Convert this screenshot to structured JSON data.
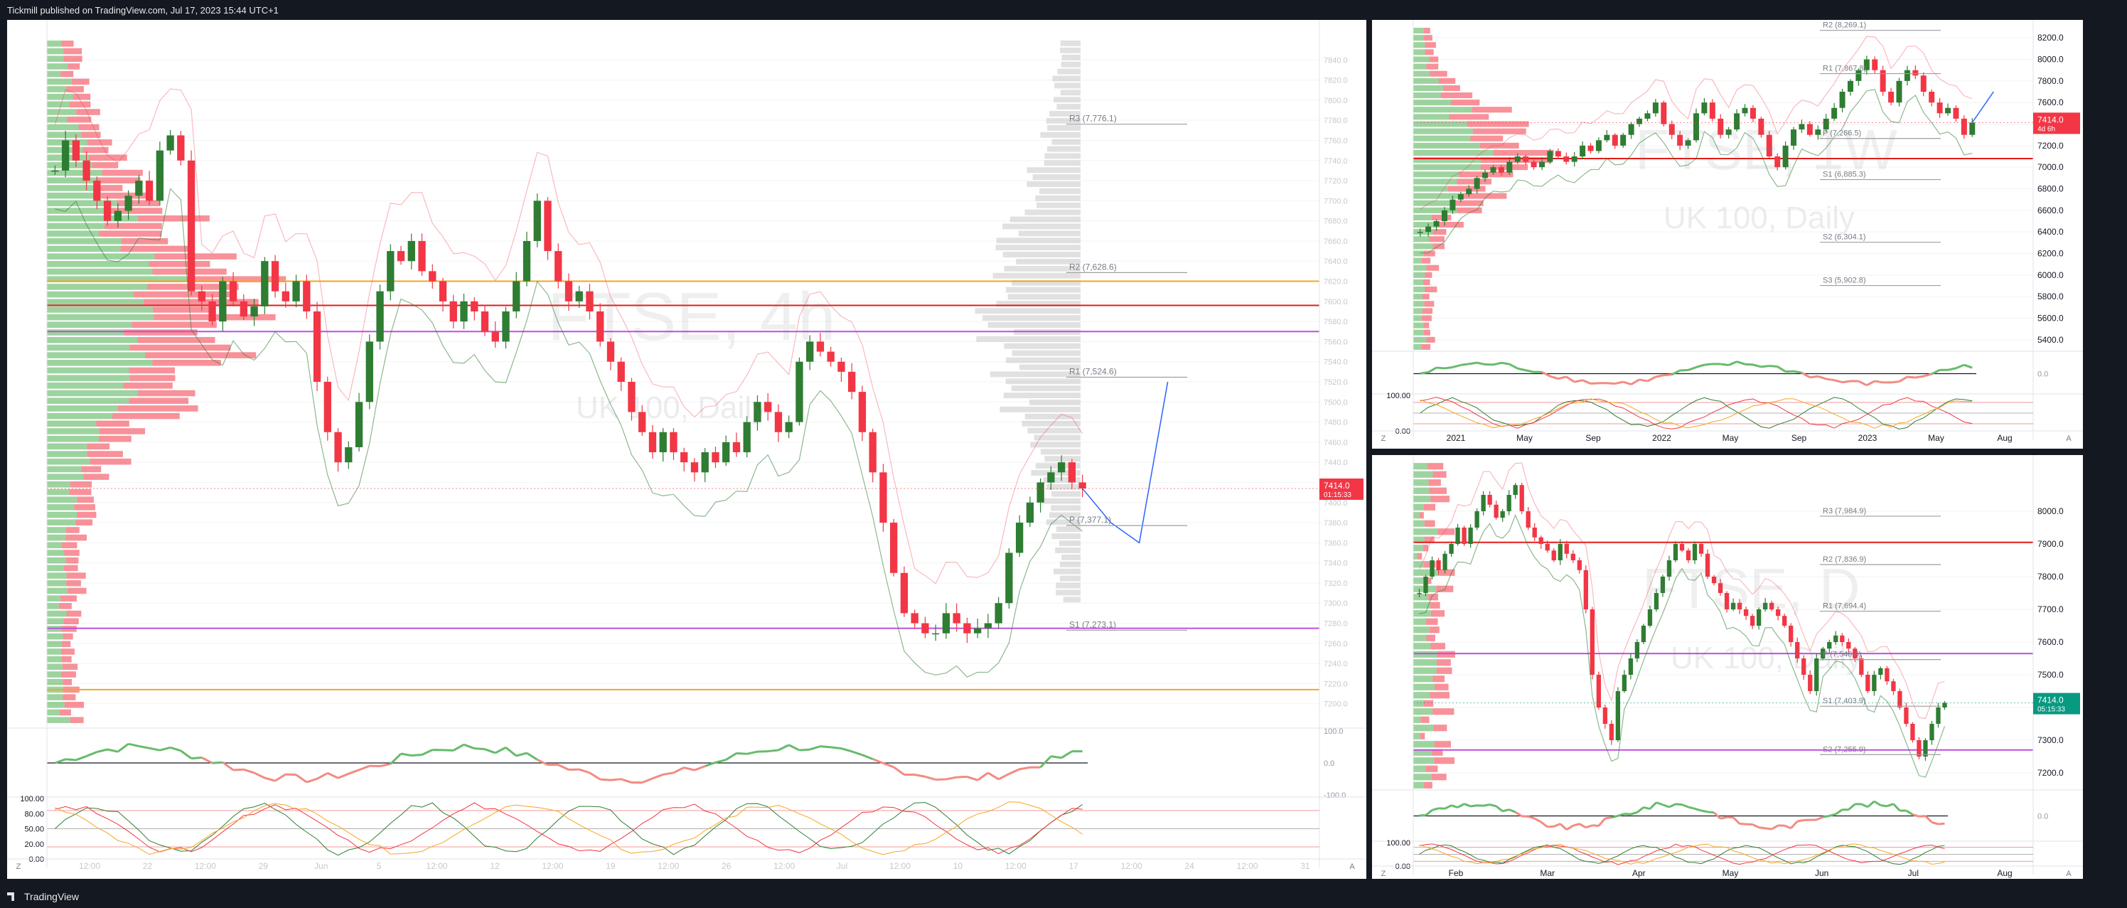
{
  "header": {
    "published_text": "Tickmill published on TradingView.com, Jul 17, 2023 15:44 UTC+1"
  },
  "footer": {
    "brand": "TradingView"
  },
  "chart_data": [
    {
      "id": "main",
      "type": "candlestick",
      "watermark_symbol": "FTSE, 4h",
      "watermark_name": "UK 100, Daily",
      "price_range": [
        7180,
        7860
      ],
      "y_ticks": [
        7200,
        7220,
        7240,
        7260,
        7280,
        7300,
        7320,
        7340,
        7360,
        7380,
        7400,
        7420,
        7440,
        7460,
        7480,
        7500,
        7520,
        7540,
        7560,
        7580,
        7600,
        7620,
        7640,
        7660,
        7680,
        7700,
        7720,
        7740,
        7760,
        7780,
        7800,
        7820,
        7840
      ],
      "x_labels": [
        "12:00",
        "22",
        "12:00",
        "29",
        "Jun",
        "5",
        "12:00",
        "12",
        "12:00",
        "19",
        "12:00",
        "26",
        "12:00",
        "Jul",
        "12:00",
        "10",
        "12:00",
        "17",
        "12:00",
        "24",
        "12:00",
        "31"
      ],
      "levels": [
        {
          "label": "R3 (7,776.1)",
          "value": 7776.1
        },
        {
          "label": "R2 (7,628.6)",
          "value": 7628.6
        },
        {
          "label": "R1 (7,524.6)",
          "value": 7524.6
        },
        {
          "label": "P (7,377.1)",
          "value": 7377.1
        },
        {
          "label": "S1 (7,273.1)",
          "value": 7273.1
        }
      ],
      "horizontal_lines": [
        {
          "value": 7596,
          "color": "#e31b1b"
        },
        {
          "value": 7570,
          "color": "#c04ee0"
        },
        {
          "value": 7620,
          "color": "#f5a623"
        },
        {
          "value": 7275,
          "color": "#c04ee0"
        },
        {
          "value": 7214,
          "color": "#f5a623"
        }
      ],
      "last_price": {
        "value": 7414.0,
        "label": "7414.0",
        "countdown": "01:15:33",
        "color": "#f23645"
      },
      "candles": [
        7730,
        7760,
        7740,
        7720,
        7700,
        7680,
        7690,
        7705,
        7720,
        7700,
        7750,
        7765,
        7740,
        7610,
        7600,
        7580,
        7620,
        7600,
        7585,
        7595,
        7640,
        7610,
        7600,
        7620,
        7590,
        7520,
        7470,
        7440,
        7455,
        7500,
        7560,
        7610,
        7650,
        7640,
        7660,
        7630,
        7620,
        7600,
        7580,
        7600,
        7590,
        7570,
        7560,
        7590,
        7620,
        7660,
        7700,
        7650,
        7620,
        7600,
        7610,
        7590,
        7560,
        7540,
        7520,
        7490,
        7470,
        7450,
        7470,
        7450,
        7440,
        7430,
        7450,
        7440,
        7460,
        7450,
        7480,
        7500,
        7490,
        7470,
        7480,
        7540,
        7560,
        7550,
        7540,
        7530,
        7510,
        7470,
        7430,
        7380,
        7330,
        7290,
        7280,
        7270,
        7270,
        7290,
        7280,
        7270,
        7275,
        7280,
        7300,
        7350,
        7380,
        7400,
        7420,
        7430,
        7440,
        7420,
        7414
      ],
      "projection": [
        7414,
        7380,
        7360,
        7520
      ],
      "oscillator_range": [
        -100,
        100
      ],
      "oscillator_ticks": [
        "100.0",
        "0.0",
        "-100.0"
      ],
      "stoch_ticks": [
        "100.00",
        "80.00",
        "50.00",
        "20.00",
        "0.00"
      ]
    },
    {
      "id": "weekly",
      "type": "candlestick",
      "watermark_symbol": "FTSE, 1W",
      "watermark_name": "UK 100, Daily",
      "price_range": [
        5300,
        8300
      ],
      "y_ticks": [
        5400,
        5600,
        5800,
        6000,
        6200,
        6400,
        6600,
        6800,
        7000,
        7200,
        7400,
        7600,
        7800,
        8000,
        8200
      ],
      "x_labels": [
        "2021",
        "May",
        "Sep",
        "2022",
        "May",
        "Sep",
        "2023",
        "May",
        "Aug"
      ],
      "levels": [
        {
          "label": "R2 (8,269.1)",
          "value": 8269.1
        },
        {
          "label": "R1 (7,867.8)",
          "value": 7867.8
        },
        {
          "label": "P (7,266.5)",
          "value": 7266.5
        },
        {
          "label": "S1 (6,885.3)",
          "value": 6885.3
        },
        {
          "label": "S2 (6,304.1)",
          "value": 6304.1
        },
        {
          "label": "S3 (5,902.8)",
          "value": 5902.8
        }
      ],
      "horizontal_lines": [
        {
          "value": 7080,
          "color": "#e31b1b"
        }
      ],
      "last_price": {
        "value": 7414.0,
        "label": "7414.0",
        "countdown": "4d 6h",
        "color": "#f23645"
      },
      "candles": [
        6400,
        6450,
        6500,
        6600,
        6700,
        6750,
        6800,
        6900,
        6950,
        7000,
        6950,
        7050,
        7100,
        7050,
        7000,
        7050,
        7150,
        7100,
        7050,
        7100,
        7200,
        7150,
        7250,
        7300,
        7200,
        7300,
        7400,
        7450,
        7500,
        7600,
        7400,
        7300,
        7200,
        7250,
        7500,
        7600,
        7450,
        7300,
        7350,
        7500,
        7550,
        7450,
        7300,
        7100,
        7000,
        7200,
        7350,
        7400,
        7300,
        7350,
        7450,
        7550,
        7700,
        7800,
        7900,
        8000,
        7900,
        7700,
        7600,
        7800,
        7900,
        7850,
        7700,
        7600,
        7500,
        7550,
        7450,
        7300,
        7414
      ],
      "projection": [
        7414,
        7700
      ],
      "oscillator_ticks": [
        "0.0"
      ],
      "stoch_ticks": [
        "100.00",
        "0.00"
      ]
    },
    {
      "id": "daily",
      "type": "candlestick",
      "watermark_symbol": "FTSE, D",
      "watermark_name": "UK 100, Daily",
      "price_range": [
        7150,
        8150
      ],
      "y_ticks": [
        7200,
        7300,
        7400,
        7500,
        7600,
        7700,
        7800,
        7900,
        8000
      ],
      "x_labels": [
        "Feb",
        "Mar",
        "Apr",
        "May",
        "Jun",
        "Jul",
        "Aug"
      ],
      "levels": [
        {
          "label": "R3 (7,984.9)",
          "value": 7984.9
        },
        {
          "label": "R2 (7,836.9)",
          "value": 7836.9
        },
        {
          "label": "R1 (7,694.4)",
          "value": 7694.4
        },
        {
          "label": "P (7,546.4)",
          "value": 7546.4
        },
        {
          "label": "S1 (7,403.9)",
          "value": 7403.9
        },
        {
          "label": "S2 (7,255.9)",
          "value": 7255.9
        }
      ],
      "horizontal_lines": [
        {
          "value": 7905,
          "color": "#e31b1b"
        },
        {
          "value": 7565,
          "color": "#c04ee0"
        },
        {
          "value": 7270,
          "color": "#c04ee0"
        }
      ],
      "last_price": {
        "value": 7414.0,
        "label": "7414.0",
        "countdown": "05:15:33",
        "color": "#089981"
      },
      "candles": [
        7750,
        7800,
        7850,
        7820,
        7870,
        7900,
        7950,
        7900,
        7950,
        8000,
        8050,
        8020,
        7980,
        8000,
        8050,
        8080,
        8000,
        7950,
        7920,
        7900,
        7880,
        7850,
        7900,
        7870,
        7850,
        7820,
        7700,
        7500,
        7400,
        7350,
        7300,
        7450,
        7500,
        7550,
        7600,
        7650,
        7700,
        7750,
        7800,
        7850,
        7900,
        7880,
        7850,
        7900,
        7870,
        7800,
        7780,
        7750,
        7700,
        7720,
        7700,
        7680,
        7650,
        7700,
        7720,
        7700,
        7680,
        7650,
        7600,
        7550,
        7500,
        7450,
        7550,
        7580,
        7600,
        7620,
        7600,
        7580,
        7550,
        7500,
        7450,
        7500,
        7520,
        7480,
        7450,
        7400,
        7350,
        7300,
        7250,
        7300,
        7350,
        7400,
        7414
      ],
      "oscillator_ticks": [
        "0.0"
      ],
      "stoch_ticks": [
        "100.00",
        "0.00"
      ]
    }
  ]
}
